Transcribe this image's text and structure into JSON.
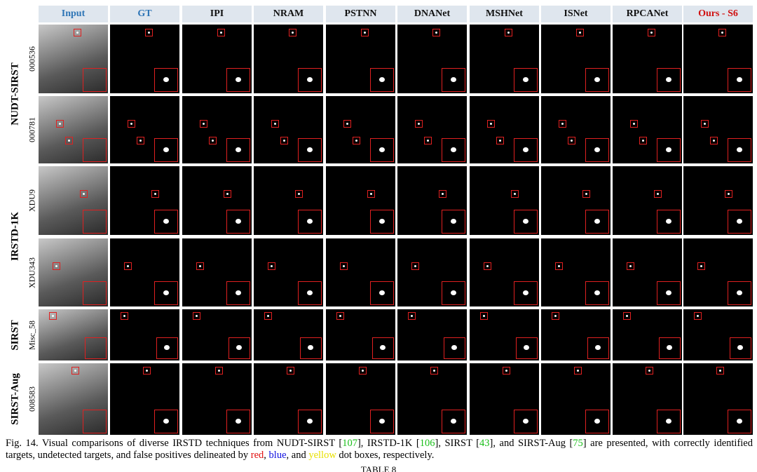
{
  "columns": [
    "Input",
    "GT",
    "IPI",
    "NRAM",
    "PSTNN",
    "DNANet",
    "MSHNet",
    "ISNet",
    "RPCANet",
    "Ours - S6"
  ],
  "groups": [
    {
      "name": "NUDT-SIRST",
      "rows": [
        "000536",
        "000781"
      ]
    },
    {
      "name": "IRSTD-1K",
      "rows": [
        "XDU9",
        "XDU343"
      ]
    },
    {
      "name": "SIRST",
      "rows": [
        "Misc_58"
      ]
    },
    {
      "name": "SIRST-Aug",
      "rows": [
        "008583"
      ]
    }
  ],
  "caption": {
    "segments": [
      "Fig. 14. Visual comparisons of diverse IRSTD techniques from NUDT-SIRST [",
      "107",
      "], IRSTD-1K [",
      "106",
      "], SIRST [",
      "43",
      "], and SIRST-Aug [",
      "75",
      "] are presented, with correctly identified targets, undetected targets, and false positives delineated by ",
      "red",
      ", ",
      "blue",
      ", and ",
      "yellow",
      " dot boxes, respectively."
    ]
  },
  "next_heading": "TABLE 8"
}
